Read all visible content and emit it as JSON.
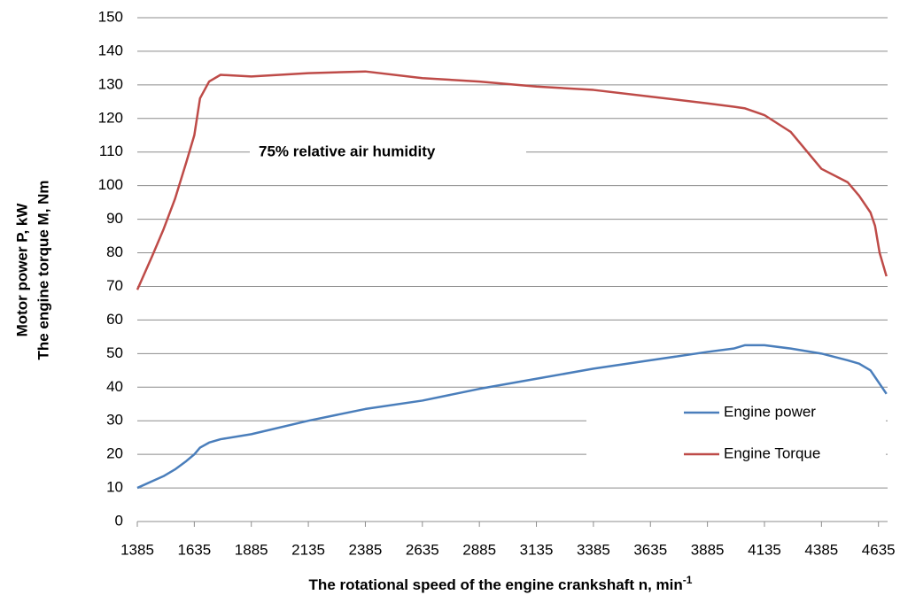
{
  "chart_data": {
    "type": "line",
    "x_label": "The rotational speed of the engine crankshaft n, min",
    "x_label_sup": "-1",
    "y_label": [
      "Motor power P, kW",
      "The engine torque M, Nm"
    ],
    "annotation": "75%  relative air humidity",
    "x": [
      1385,
      1450,
      1500,
      1550,
      1600,
      1635,
      1660,
      1700,
      1750,
      1885,
      2135,
      2385,
      2635,
      2885,
      3135,
      3385,
      3635,
      3885,
      4000,
      4050,
      4135,
      4250,
      4385,
      4500,
      4550,
      4600,
      4620,
      4640,
      4670
    ],
    "series": [
      {
        "name": "Engine power",
        "color": "#4a7ebb",
        "values": [
          10,
          12,
          13.5,
          15.5,
          18,
          20,
          22,
          23.5,
          24.5,
          26,
          30,
          33.5,
          36,
          39.5,
          42.5,
          45.5,
          48,
          50.5,
          51.5,
          52.5,
          52.5,
          51.5,
          50,
          48,
          47,
          45,
          43,
          41,
          38
        ]
      },
      {
        "name": "Engine Torque",
        "color": "#be4b48",
        "values": [
          69,
          79,
          87,
          96,
          107,
          115,
          126,
          131,
          133,
          132.5,
          133.5,
          134,
          132,
          131,
          129.5,
          128.5,
          126.5,
          124.5,
          123.5,
          123,
          121,
          116,
          105,
          101,
          97,
          92,
          88,
          80,
          73
        ]
      }
    ],
    "xlim": [
      1385,
      4675
    ],
    "ylim": [
      0,
      150
    ],
    "xticks": [
      1385,
      1635,
      1885,
      2135,
      2385,
      2635,
      2885,
      3135,
      3385,
      3635,
      3885,
      4135,
      4385,
      4635
    ],
    "yticks": [
      0,
      10,
      20,
      30,
      40,
      50,
      60,
      70,
      80,
      90,
      100,
      110,
      120,
      130,
      140,
      150
    ],
    "grid": true,
    "legend": "lower-right"
  }
}
